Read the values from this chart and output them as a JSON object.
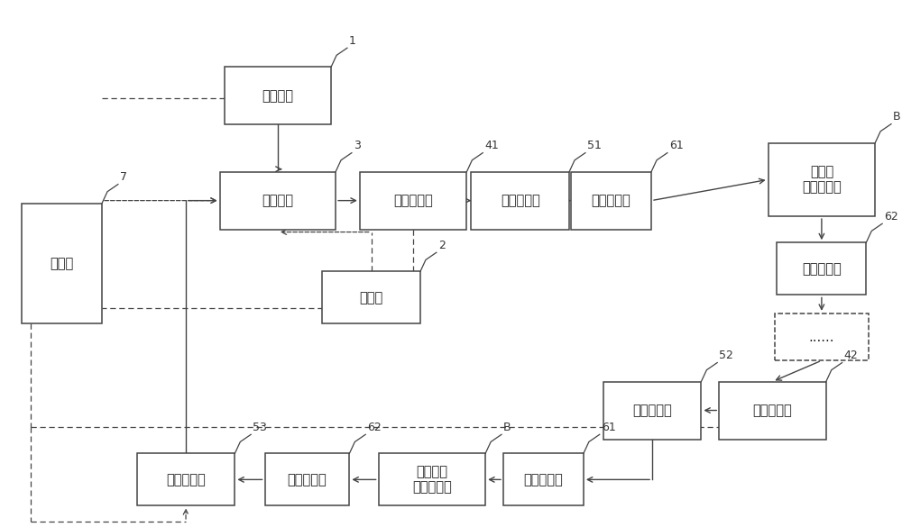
{
  "boxes": {
    "ctrl": [
      0.068,
      0.5,
      0.09,
      0.23,
      "控制器",
      "7",
      false
    ],
    "etank": [
      0.31,
      0.82,
      0.12,
      0.11,
      "电解质箱",
      "1",
      false
    ],
    "ebox": [
      0.31,
      0.62,
      0.13,
      0.11,
      "电解液箱",
      "3",
      false
    ],
    "store": [
      0.415,
      0.435,
      0.11,
      0.1,
      "存储箱",
      "2",
      false
    ],
    "primary": [
      0.462,
      0.62,
      0.12,
      0.11,
      "循环初级泵",
      "41",
      false
    ],
    "front_f": [
      0.582,
      0.62,
      0.11,
      0.11,
      "前置过滤器",
      "51",
      false
    ],
    "split1": [
      0.684,
      0.62,
      0.09,
      0.11,
      "分流控制管",
      "61",
      false
    ],
    "first_bat": [
      0.92,
      0.66,
      0.12,
      0.14,
      "第一级\n单体电池组",
      "B",
      false
    ],
    "merge1": [
      0.92,
      0.49,
      0.1,
      0.1,
      "合流控制管",
      "62",
      false
    ],
    "dots": [
      0.92,
      0.36,
      0.105,
      0.09,
      "......",
      null,
      true
    ],
    "relay": [
      0.865,
      0.22,
      0.12,
      0.11,
      "循环中继泵",
      "42",
      false
    ],
    "mid_f": [
      0.73,
      0.22,
      0.11,
      0.11,
      "中置过滤器",
      "52",
      false
    ],
    "split2": [
      0.608,
      0.088,
      0.09,
      0.1,
      "分流控制管",
      "61",
      false
    ],
    "last_bat": [
      0.483,
      0.088,
      0.12,
      0.1,
      "最后一级\n单体电池组",
      "B",
      false
    ],
    "merge2": [
      0.343,
      0.088,
      0.095,
      0.1,
      "合流控制管",
      "62",
      false
    ],
    "rear_f": [
      0.207,
      0.088,
      0.11,
      0.1,
      "后置过滤器",
      "53",
      false
    ]
  },
  "line_color": "#444444",
  "dash_color": "#444444",
  "font_size": 10.5,
  "ref_font_size": 9.0,
  "bg_color": "#ffffff"
}
